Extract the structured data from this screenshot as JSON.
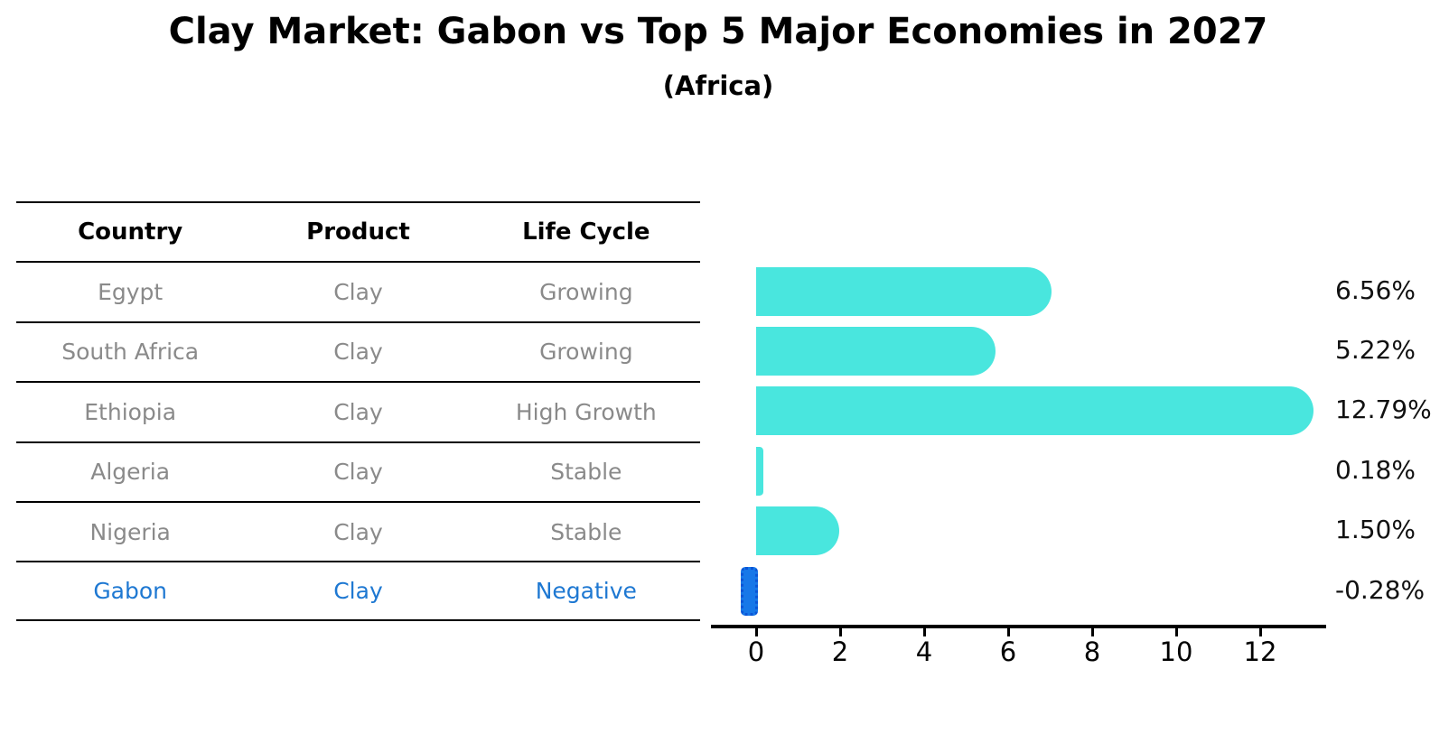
{
  "title": "Clay Market: Gabon vs Top 5 Major Economies in 2027",
  "subtitle": "(Africa)",
  "table": {
    "headers": [
      "Country",
      "Product",
      "Life Cycle"
    ],
    "rows": [
      {
        "country": "Egypt",
        "product": "Clay",
        "life_cycle": "Growing",
        "highlight": false
      },
      {
        "country": "South Africa",
        "product": "Clay",
        "life_cycle": "Growing",
        "highlight": false
      },
      {
        "country": "Ethiopia",
        "product": "Clay",
        "life_cycle": "High Growth",
        "highlight": false
      },
      {
        "country": "Algeria",
        "product": "Clay",
        "life_cycle": "Stable",
        "highlight": false
      },
      {
        "country": "Nigeria",
        "product": "Clay",
        "life_cycle": "Stable",
        "highlight": false
      },
      {
        "country": "Gabon",
        "product": "Clay",
        "life_cycle": "Negative",
        "highlight": true
      }
    ]
  },
  "chart_data": {
    "type": "bar",
    "orientation": "horizontal",
    "title": "Clay Market: Gabon vs Top 5 Major Economies in 2027",
    "subtitle": "(Africa)",
    "categories": [
      "Egypt",
      "South Africa",
      "Ethiopia",
      "Algeria",
      "Nigeria",
      "Gabon"
    ],
    "values": [
      6.56,
      5.22,
      12.79,
      0.18,
      1.5,
      -0.28
    ],
    "value_labels": [
      "6.56%",
      "5.22%",
      "12.79%",
      "0.18%",
      "1.50%",
      "-0.28%"
    ],
    "x_ticks": [
      0,
      2,
      4,
      6,
      8,
      10,
      12
    ],
    "xlim": [
      -1.1,
      13.6
    ],
    "xlabel": "",
    "ylabel": "",
    "grid": false,
    "legend": false,
    "bar_color": "#49e6de",
    "highlight_index": 5,
    "highlight_bar_color": "#1778e8",
    "highlight_bar_edge_color": "#0b55d6",
    "highlight_text_color": "#1e78d2",
    "table_text_color": "#8a8a8a",
    "header_text_color": "#000000",
    "axis_color": "#000000"
  }
}
